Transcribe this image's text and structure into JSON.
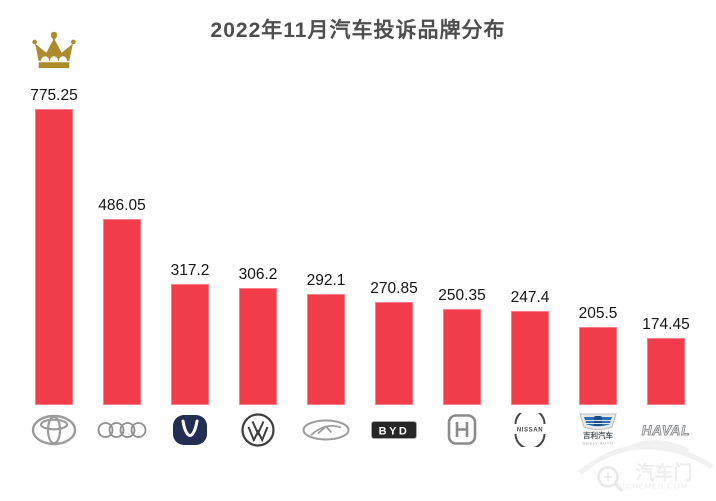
{
  "title": "2022年11月汽车投诉品牌分布",
  "chart_data": {
    "type": "bar",
    "title": "2022年11月汽车投诉品牌分布",
    "categories": [
      "Toyota",
      "Audi",
      "Changan",
      "Volkswagen",
      "Chery",
      "BYD",
      "Honda",
      "Nissan",
      "Geely",
      "Haval"
    ],
    "values": [
      775.25,
      486.05,
      317.2,
      306.2,
      292.1,
      270.85,
      250.35,
      247.4,
      205.5,
      174.45
    ],
    "value_labels": [
      "775.25",
      "486.05",
      "317.2",
      "306.2",
      "292.1",
      "270.85",
      "250.35",
      "247.4",
      "205.5",
      "174.45"
    ],
    "xlabel": "",
    "ylabel": "",
    "ylim": [
      0,
      800
    ],
    "grid": false,
    "legend": "none",
    "bar_color": "#f23c4a",
    "annotations": {
      "crown_on_category": "Toyota",
      "crown_color": "#ac8a2e"
    }
  },
  "logos": {
    "byd_text": "BYD",
    "nissan_text": "NISSAN",
    "geely_cn": "吉利汽车",
    "geely_en": "GEELY AUTO",
    "haval_text": "HAVAL"
  },
  "watermark": {
    "brand": "汽车门",
    "domain": "QICHEMEN.COM"
  }
}
